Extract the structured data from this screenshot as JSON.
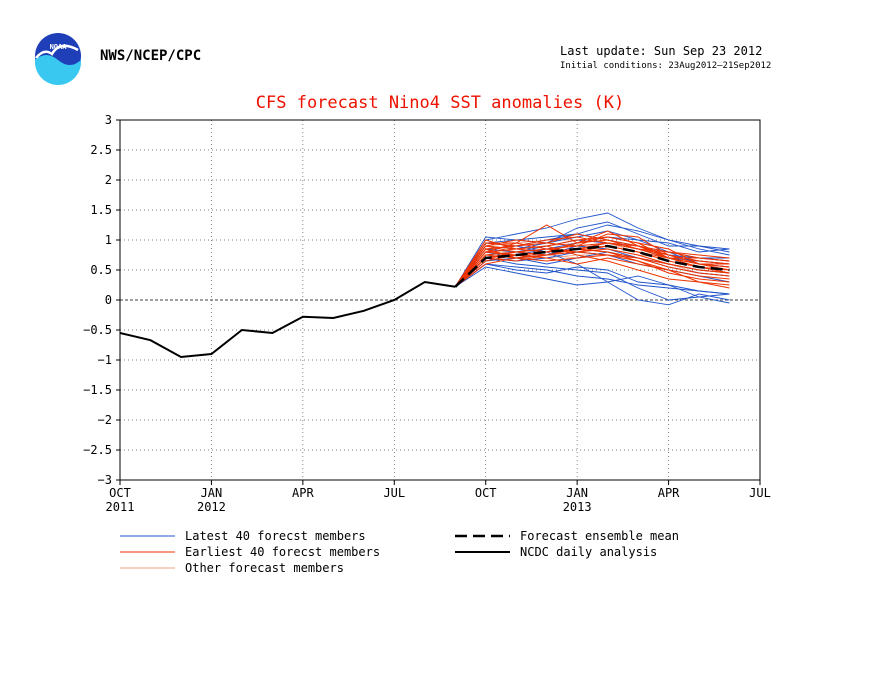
{
  "header": {
    "org": "NWS/NCEP/CPC",
    "logo_text": "NOAA",
    "last_update": "Last update: Sun Sep 23 2012",
    "initial_conditions": "Initial conditions: 23Aug2012–21Sep2012"
  },
  "chart_data": {
    "type": "line",
    "title": "CFS forecast Nino4 SST anomalies (K)",
    "ylim": [
      -3,
      3
    ],
    "yticks": [
      3,
      2.5,
      2,
      1.5,
      1,
      0.5,
      0,
      -0.5,
      -1,
      -1.5,
      -2,
      -2.5,
      -3
    ],
    "ytick_labels": [
      "3",
      "2.5",
      "2",
      "1.5",
      "1",
      "0.5",
      "0",
      "−0.5",
      "−1",
      "−1.5",
      "−2",
      "−2.5",
      "−3"
    ],
    "xlim": [
      0,
      21
    ],
    "xticks": [
      {
        "x": 0,
        "label": "OCT",
        "year": "2011"
      },
      {
        "x": 3,
        "label": "JAN",
        "year": "2012"
      },
      {
        "x": 6,
        "label": "APR",
        "year": ""
      },
      {
        "x": 9,
        "label": "JUL",
        "year": ""
      },
      {
        "x": 12,
        "label": "OCT",
        "year": ""
      },
      {
        "x": 15,
        "label": "JAN",
        "year": "2013"
      },
      {
        "x": 18,
        "label": "APR",
        "year": ""
      },
      {
        "x": 21,
        "label": "JUL",
        "year": ""
      }
    ],
    "grid": true,
    "zero_line": true,
    "legend_position": "bottom",
    "colors": {
      "latest": "#2255cc",
      "earliest": "#ee3300",
      "other": "#f0a080",
      "mean": "#000000",
      "analysis": "#000000"
    },
    "legend": [
      {
        "label": "Latest 40 forecst members",
        "key": "latest",
        "style": "thin"
      },
      {
        "label": "Earliest 40 forecst members",
        "key": "earliest",
        "style": "thin"
      },
      {
        "label": "Other forecast members",
        "key": "other",
        "style": "thin"
      },
      {
        "label": "Forecast ensemble mean",
        "key": "mean",
        "style": "dashed"
      },
      {
        "label": "NCDC daily analysis",
        "key": "analysis",
        "style": "solid"
      }
    ],
    "analysis": {
      "x": [
        0,
        1,
        2,
        3,
        4,
        5,
        6,
        7,
        8,
        9,
        10,
        11
      ],
      "y": [
        -0.55,
        -0.67,
        -0.95,
        -0.9,
        -0.5,
        -0.55,
        -0.28,
        -0.3,
        -0.18,
        0.0,
        0.3,
        0.22
      ]
    },
    "ensemble_mean": {
      "x": [
        11,
        12,
        13,
        14,
        15,
        16,
        17,
        18,
        19,
        20
      ],
      "y": [
        0.22,
        0.7,
        0.75,
        0.8,
        0.85,
        0.9,
        0.8,
        0.65,
        0.55,
        0.5
      ]
    },
    "members": {
      "x": [
        11,
        12,
        13,
        14,
        15,
        16,
        17,
        18,
        19,
        20
      ],
      "latest": [
        [
          0.22,
          0.95,
          0.9,
          0.8,
          0.6,
          0.3,
          0.0,
          -0.08,
          0.1,
          0.0
        ],
        [
          0.22,
          0.55,
          0.45,
          0.35,
          0.25,
          0.3,
          0.4,
          0.25,
          0.05,
          -0.05
        ],
        [
          0.22,
          1.0,
          1.1,
          1.2,
          1.35,
          1.45,
          1.2,
          1.0,
          0.85,
          0.75
        ],
        [
          0.22,
          0.6,
          0.5,
          0.45,
          0.55,
          0.5,
          0.3,
          0.25,
          0.15,
          0.1
        ],
        [
          0.22,
          0.85,
          0.9,
          1.0,
          1.1,
          1.0,
          0.9,
          0.8,
          0.7,
          0.7
        ],
        [
          0.22,
          0.7,
          0.6,
          0.55,
          0.5,
          0.45,
          0.2,
          0.0,
          0.05,
          0.1
        ],
        [
          0.22,
          1.05,
          1.0,
          0.95,
          1.2,
          1.3,
          1.1,
          0.9,
          0.9,
          0.85
        ],
        [
          0.22,
          0.65,
          0.75,
          0.85,
          0.95,
          1.05,
          1.0,
          0.8,
          0.6,
          0.55
        ],
        [
          0.22,
          0.8,
          0.7,
          0.6,
          0.7,
          0.8,
          0.7,
          0.55,
          0.45,
          0.4
        ],
        [
          0.22,
          0.9,
          0.85,
          0.95,
          1.05,
          1.15,
          1.0,
          0.95,
          0.8,
          0.85
        ],
        [
          0.22,
          0.6,
          0.55,
          0.5,
          0.4,
          0.35,
          0.25,
          0.2,
          0.15,
          0.1
        ],
        [
          0.22,
          0.75,
          0.8,
          0.9,
          1.0,
          0.95,
          0.85,
          0.7,
          0.65,
          0.6
        ],
        [
          0.22,
          0.95,
          1.0,
          1.05,
          1.1,
          1.25,
          1.15,
          1.0,
          0.9,
          0.8
        ],
        [
          0.22,
          0.7,
          0.65,
          0.7,
          0.8,
          0.75,
          0.6,
          0.5,
          0.4,
          0.3
        ],
        [
          0.22,
          0.85,
          0.8,
          0.75,
          0.85,
          0.95,
          0.9,
          0.75,
          0.7,
          0.65
        ],
        [
          0.22,
          0.65,
          0.7,
          0.75,
          0.9,
          0.85,
          0.7,
          0.6,
          0.5,
          0.45
        ]
      ],
      "earliest": [
        [
          0.22,
          0.8,
          0.95,
          1.25,
          0.95,
          1.05,
          0.95,
          0.7,
          0.55,
          0.45
        ],
        [
          0.22,
          0.9,
          0.85,
          0.9,
          1.0,
          1.05,
          0.95,
          0.85,
          0.6,
          0.5
        ],
        [
          0.22,
          0.7,
          0.75,
          0.7,
          0.6,
          0.7,
          0.6,
          0.5,
          0.3,
          0.25
        ],
        [
          0.22,
          0.95,
          0.9,
          0.95,
          1.1,
          1.0,
          0.85,
          0.7,
          0.7,
          0.65
        ],
        [
          0.22,
          0.75,
          0.8,
          0.85,
          0.9,
          1.1,
          1.05,
          0.75,
          0.6,
          0.55
        ],
        [
          0.22,
          0.85,
          0.7,
          0.75,
          0.8,
          0.85,
          0.75,
          0.6,
          0.5,
          0.45
        ],
        [
          0.22,
          0.65,
          0.75,
          0.8,
          0.85,
          0.8,
          0.7,
          0.55,
          0.45,
          0.4
        ],
        [
          0.22,
          1.0,
          0.85,
          0.8,
          0.95,
          1.15,
          0.9,
          0.75,
          0.65,
          0.6
        ],
        [
          0.22,
          0.8,
          0.85,
          0.9,
          0.75,
          0.65,
          0.5,
          0.35,
          0.3,
          0.2
        ],
        [
          0.22,
          0.9,
          1.0,
          0.95,
          0.9,
          0.95,
          0.85,
          0.8,
          0.75,
          0.7
        ],
        [
          0.22,
          0.7,
          0.65,
          0.75,
          0.85,
          0.9,
          0.8,
          0.65,
          0.55,
          0.5
        ],
        [
          0.22,
          0.85,
          0.9,
          1.0,
          1.05,
          0.95,
          0.9,
          0.7,
          0.6,
          0.6
        ],
        [
          0.22,
          0.75,
          0.7,
          0.65,
          0.7,
          0.75,
          0.65,
          0.5,
          0.4,
          0.35
        ],
        [
          0.22,
          0.95,
          0.95,
          0.85,
          0.8,
          0.9,
          0.8,
          0.7,
          0.6,
          0.55
        ],
        [
          0.22,
          0.8,
          0.75,
          0.8,
          0.95,
          1.0,
          0.9,
          0.8,
          0.7,
          0.65
        ],
        [
          0.22,
          0.7,
          0.8,
          0.85,
          0.8,
          0.75,
          0.7,
          0.6,
          0.5,
          0.45
        ],
        [
          0.22,
          0.9,
          0.8,
          0.75,
          0.85,
          0.95,
          0.85,
          0.75,
          0.65,
          0.6
        ],
        [
          0.22,
          0.6,
          0.7,
          0.8,
          0.85,
          0.8,
          0.65,
          0.45,
          0.35,
          0.3
        ]
      ],
      "other": [
        [
          0.22,
          0.8,
          0.85,
          0.9,
          0.95,
          1.0,
          0.85,
          0.7,
          0.6,
          0.55
        ],
        [
          0.22,
          0.75,
          0.7,
          0.8,
          0.85,
          0.8,
          0.7,
          0.6,
          0.5,
          0.45
        ],
        [
          0.22,
          0.85,
          0.8,
          0.85,
          0.9,
          0.95,
          0.8,
          0.65,
          0.55,
          0.5
        ],
        [
          0.22,
          0.7,
          0.75,
          0.75,
          0.8,
          0.85,
          0.75,
          0.6,
          0.45,
          0.4
        ],
        [
          0.22,
          0.9,
          0.95,
          1.0,
          1.0,
          0.95,
          0.85,
          0.75,
          0.65,
          0.6
        ],
        [
          0.22,
          0.65,
          0.7,
          0.7,
          0.75,
          0.75,
          0.6,
          0.5,
          0.4,
          0.3
        ],
        [
          0.22,
          0.8,
          0.8,
          0.75,
          0.7,
          0.8,
          0.7,
          0.55,
          0.45,
          0.4
        ],
        [
          0.22,
          0.85,
          0.9,
          0.95,
          0.9,
          0.85,
          0.75,
          0.7,
          0.6,
          0.6
        ]
      ]
    }
  }
}
